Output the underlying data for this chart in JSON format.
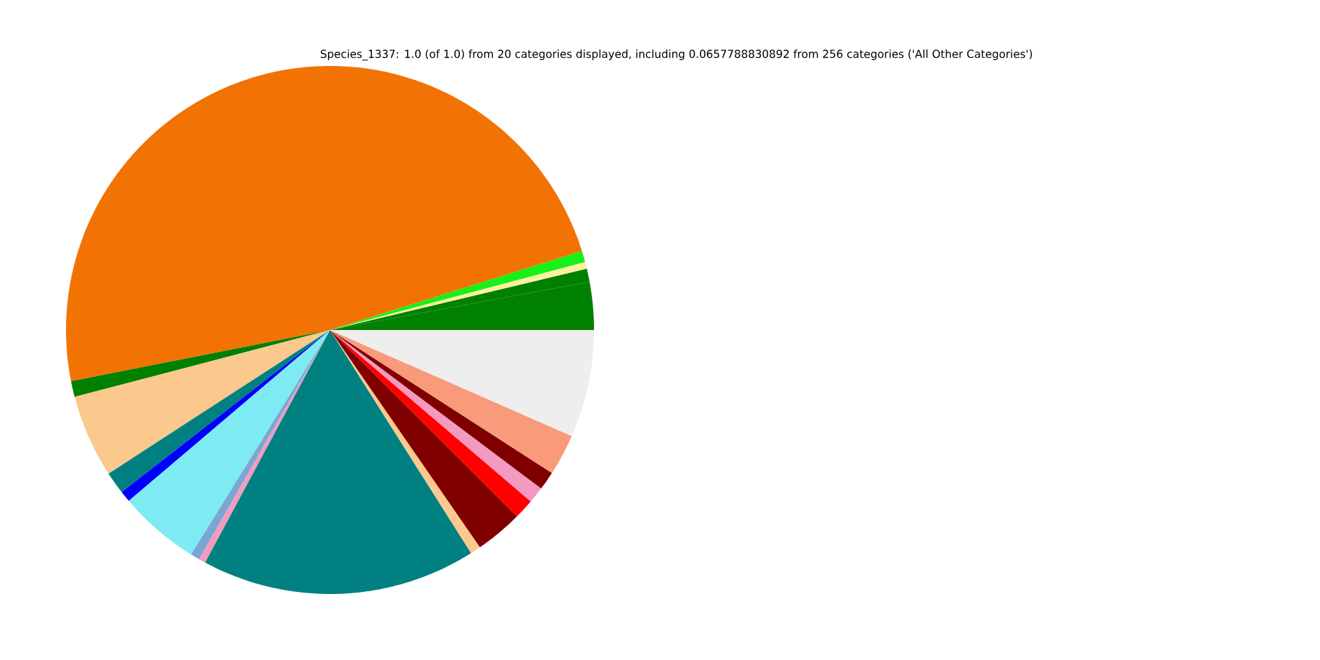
{
  "chart_data": {
    "type": "pie",
    "title": "Species_1337: 1.0 (of 1.0) from 20 categories displayed, including 0.0657788830892 from 256 categories ('All Other Categories')",
    "categories": [
      null,
      null,
      null,
      null,
      null,
      null,
      null,
      null,
      null,
      null,
      null,
      null,
      null,
      null,
      null,
      null,
      null,
      null,
      null,
      null
    ],
    "values": [
      2.92,
      0.81,
      0.42,
      0.69,
      48.27,
      0.97,
      5.08,
      1.36,
      0.69,
      4.97,
      0.56,
      0.42,
      16.81,
      0.64,
      2.92,
      1.22,
      1.0,
      1.14,
      2.53,
      6.58
    ],
    "colors": [
      "#008000",
      "#008000",
      "#fdf0a0",
      "#18f018",
      "#f27304",
      "#008000",
      "#fbc98d",
      "#008080",
      "#0000ff",
      "#7eebf2",
      "#7ba6d3",
      "#f49ac1",
      "#008080",
      "#fbc98d",
      "#800000",
      "#ff0000",
      "#f49ac1",
      "#800000",
      "#f99a7a",
      "#eeeeee"
    ]
  }
}
